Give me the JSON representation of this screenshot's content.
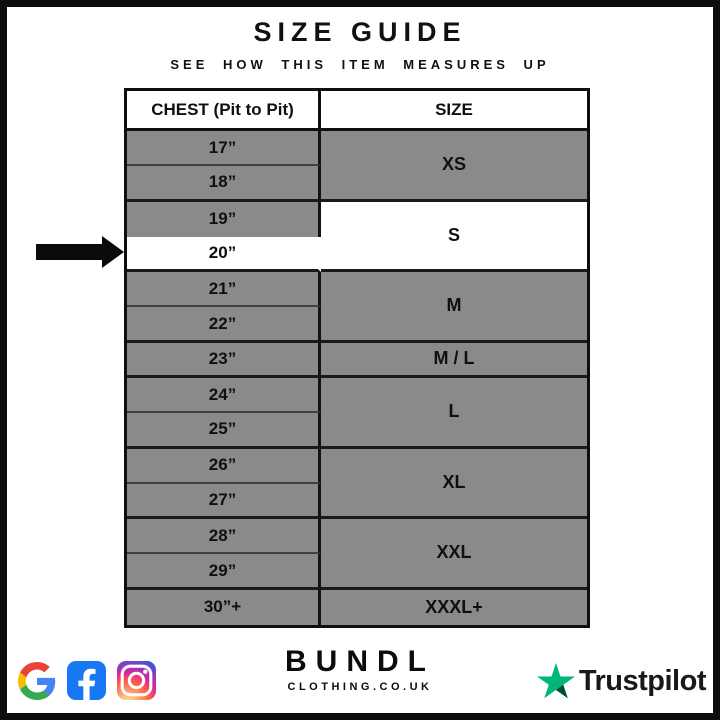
{
  "title": "SIZE GUIDE",
  "subtitle": "SEE HOW THIS ITEM MEASURES UP",
  "table": {
    "chest_header": "CHEST (Pit to Pit)",
    "size_header": "SIZE",
    "rows": [
      {
        "chest": "17”"
      },
      {
        "chest": "18”"
      },
      {
        "chest": "19”"
      },
      {
        "chest": "20”",
        "highlight": true
      },
      {
        "chest": "21”"
      },
      {
        "chest": "22”"
      },
      {
        "chest": "23”"
      },
      {
        "chest": "24”"
      },
      {
        "chest": "25”"
      },
      {
        "chest": "26”"
      },
      {
        "chest": "27”"
      },
      {
        "chest": "28”"
      },
      {
        "chest": "29”"
      },
      {
        "chest": "30”+"
      }
    ],
    "size_groups": [
      {
        "label": "XS",
        "rows": 2
      },
      {
        "label": "S",
        "rows": 2,
        "highlight": true
      },
      {
        "label": "M",
        "rows": 2
      },
      {
        "label": "M / L",
        "rows": 1
      },
      {
        "label": "L",
        "rows": 2
      },
      {
        "label": "XL",
        "rows": 2
      },
      {
        "label": "XXL",
        "rows": 2
      },
      {
        "label": "XXXL+",
        "rows": 1
      }
    ]
  },
  "chart_data": {
    "type": "table",
    "title": "SIZE GUIDE",
    "columns": [
      "CHEST (Pit to Pit)",
      "SIZE"
    ],
    "rows": [
      [
        "17”",
        "XS"
      ],
      [
        "18”",
        "XS"
      ],
      [
        "19”",
        "S"
      ],
      [
        "20”",
        "S"
      ],
      [
        "21”",
        "M"
      ],
      [
        "22”",
        "M"
      ],
      [
        "23”",
        "M / L"
      ],
      [
        "24”",
        "L"
      ],
      [
        "25”",
        "L"
      ],
      [
        "26”",
        "XL"
      ],
      [
        "27”",
        "XL"
      ],
      [
        "28”",
        "XXL"
      ],
      [
        "29”",
        "XXL"
      ],
      [
        "30”+",
        "XXXL+"
      ]
    ],
    "highlighted_row": [
      "20”",
      "S"
    ]
  },
  "colors": {
    "row_gray": "#8a8a8a",
    "highlight": "#ffffff",
    "facebook_blue": "#1877F2",
    "trustpilot_green": "#00B67A",
    "trustpilot_dark": "#005128",
    "google": [
      "#4285F4",
      "#EA4335",
      "#FBBC05",
      "#34A853"
    ],
    "instagram_gradient": [
      "#fdf497",
      "#fd5949",
      "#d6249f",
      "#285AEB"
    ]
  },
  "footer": {
    "brand_name": "BUNDL",
    "brand_tagline": "CLOTHING.CO.UK",
    "trustpilot_label": "Trustpilot",
    "icons": [
      "google-icon",
      "facebook-icon",
      "instagram-icon"
    ]
  }
}
